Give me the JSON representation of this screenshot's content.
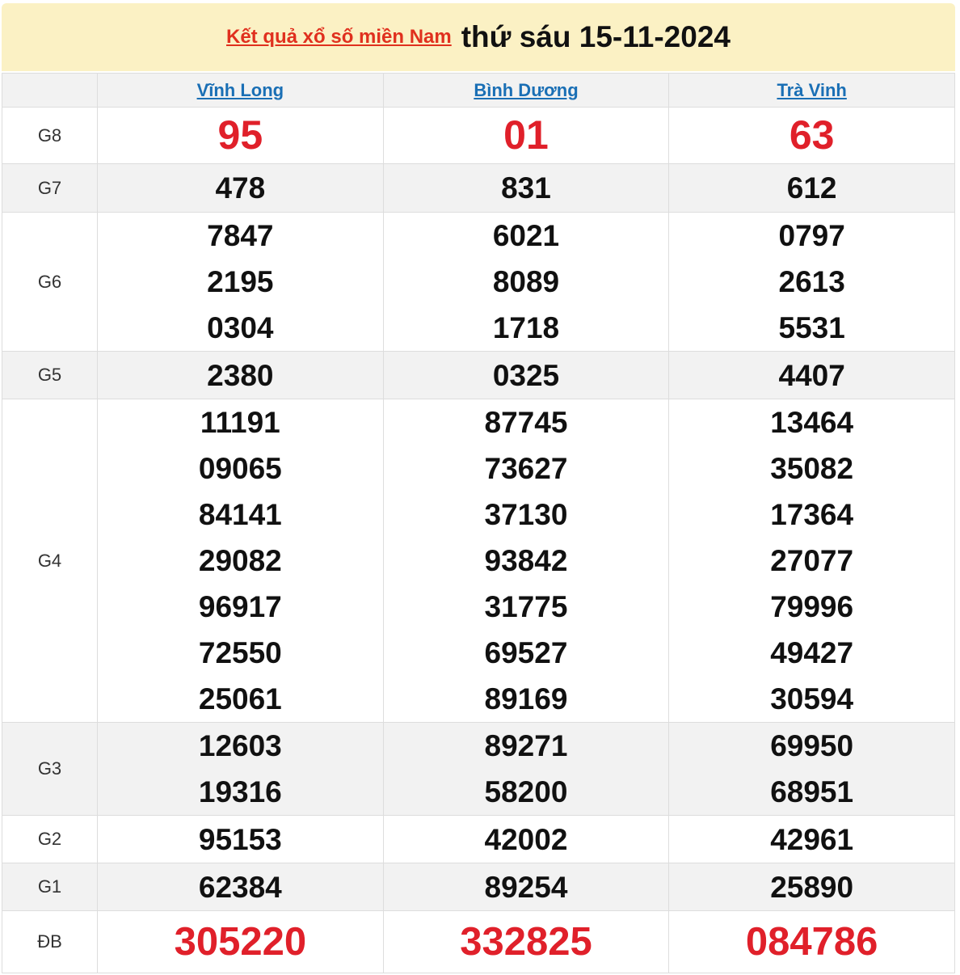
{
  "header": {
    "link": "Kết quả xổ số miền Nam",
    "date": "thứ sáu 15-11-2024"
  },
  "provinces": [
    "Vĩnh Long",
    "Bình Dương",
    "Trà Vinh"
  ],
  "colors": {
    "accent_red": "#e0202a",
    "link_blue": "#1a6fb5",
    "header_bg": "#fbf1c4"
  },
  "prizes": [
    {
      "label": "G8",
      "values": [
        [
          "95"
        ],
        [
          "01"
        ],
        [
          "63"
        ]
      ]
    },
    {
      "label": "G7",
      "values": [
        [
          "478"
        ],
        [
          "831"
        ],
        [
          "612"
        ]
      ]
    },
    {
      "label": "G6",
      "values": [
        [
          "7847",
          "2195",
          "0304"
        ],
        [
          "6021",
          "8089",
          "1718"
        ],
        [
          "0797",
          "2613",
          "5531"
        ]
      ]
    },
    {
      "label": "G5",
      "values": [
        [
          "2380"
        ],
        [
          "0325"
        ],
        [
          "4407"
        ]
      ]
    },
    {
      "label": "G4",
      "values": [
        [
          "11191",
          "09065",
          "84141",
          "29082",
          "96917",
          "72550",
          "25061"
        ],
        [
          "87745",
          "73627",
          "37130",
          "93842",
          "31775",
          "69527",
          "89169"
        ],
        [
          "13464",
          "35082",
          "17364",
          "27077",
          "79996",
          "49427",
          "30594"
        ]
      ]
    },
    {
      "label": "G3",
      "values": [
        [
          "12603",
          "19316"
        ],
        [
          "89271",
          "58200"
        ],
        [
          "69950",
          "68951"
        ]
      ]
    },
    {
      "label": "G2",
      "values": [
        [
          "95153"
        ],
        [
          "42002"
        ],
        [
          "42961"
        ]
      ]
    },
    {
      "label": "G1",
      "values": [
        [
          "62384"
        ],
        [
          "89254"
        ],
        [
          "25890"
        ]
      ]
    },
    {
      "label": "ĐB",
      "values": [
        [
          "305220"
        ],
        [
          "332825"
        ],
        [
          "084786"
        ]
      ]
    }
  ]
}
